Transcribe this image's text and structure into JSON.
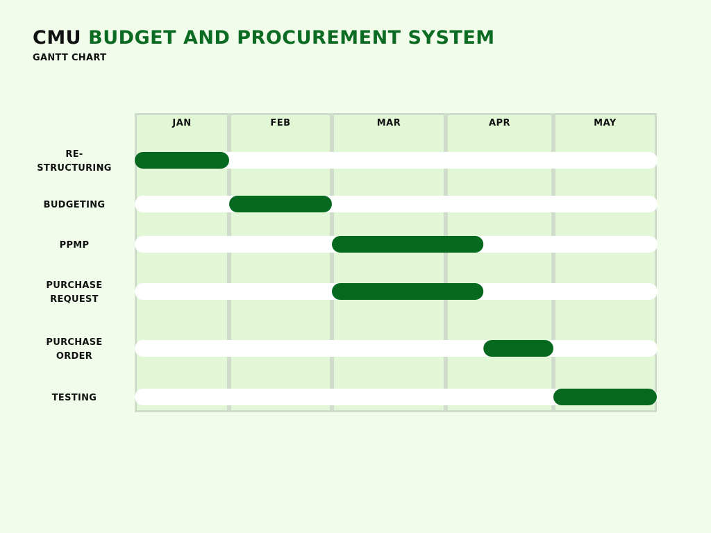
{
  "header": {
    "prefix": "CMU",
    "title": "BUDGET AND PROCUREMENT SYSTEM",
    "subtitle": "GANTT CHART"
  },
  "colors": {
    "background": "#f1fdea",
    "column_fill": "#e2f7d6",
    "column_border": "#d0dccb",
    "track": "#ffffff",
    "bar": "#05691f",
    "title_accent": "#0b6b22"
  },
  "chart_data": {
    "type": "gantt",
    "months": [
      "JAN",
      "FEB",
      "MAR",
      "APR",
      "MAY"
    ],
    "tasks": [
      {
        "name": "RE-\nSTRUCTURING",
        "start": 0,
        "end": 1.0
      },
      {
        "name": "BUDGETING",
        "start": 1.0,
        "end": 2.0
      },
      {
        "name": "PPMP",
        "start": 2.0,
        "end": 3.35
      },
      {
        "name": "PURCHASE\nREQUEST",
        "start": 2.0,
        "end": 3.35
      },
      {
        "name": "PURCHASE\nORDER",
        "start": 3.35,
        "end": 4.0
      },
      {
        "name": "TESTING",
        "start": 4.0,
        "end": 5.0
      }
    ]
  }
}
